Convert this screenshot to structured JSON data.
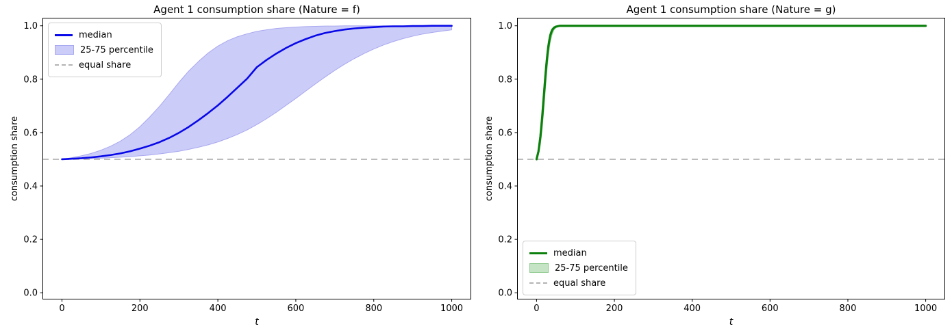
{
  "figure": {
    "background": "#ffffff"
  },
  "chart_data": [
    {
      "type": "line",
      "title": "Agent 1 consumption share (Nature = f)",
      "xlabel": "t",
      "ylabel": "consumption share",
      "xlim": [
        -50,
        1050
      ],
      "ylim": [
        -0.025,
        1.03
      ],
      "xticks": [
        0,
        200,
        400,
        600,
        800,
        1000
      ],
      "ytick_labels": [
        "0.0",
        "0.2",
        "0.4",
        "0.6",
        "0.8",
        "1.0"
      ],
      "grid": false,
      "legend_position": "upper left",
      "equal_share_y": 0.5,
      "colors": {
        "median": "#0808e8",
        "band_fill": "#ccccf8",
        "band_edge": "#a8a8f0",
        "equal_share": "#b3b3b3"
      },
      "x": [
        0,
        25,
        50,
        75,
        100,
        125,
        150,
        175,
        200,
        225,
        250,
        275,
        300,
        325,
        350,
        375,
        400,
        425,
        450,
        475,
        500,
        525,
        550,
        575,
        600,
        625,
        650,
        675,
        700,
        725,
        750,
        775,
        800,
        825,
        850,
        875,
        900,
        925,
        950,
        975,
        1000
      ],
      "series": [
        {
          "name": "median",
          "values": [
            0.5,
            0.502,
            0.504,
            0.507,
            0.511,
            0.516,
            0.522,
            0.53,
            0.54,
            0.551,
            0.564,
            0.58,
            0.599,
            0.621,
            0.646,
            0.673,
            0.702,
            0.734,
            0.768,
            0.802,
            0.845,
            0.872,
            0.896,
            0.917,
            0.935,
            0.95,
            0.963,
            0.973,
            0.98,
            0.986,
            0.99,
            0.993,
            0.995,
            0.997,
            0.998,
            0.998,
            0.999,
            0.999,
            1.0,
            1.0,
            1.0
          ]
        },
        {
          "name": "75th percentile",
          "values": [
            0.5,
            0.506,
            0.513,
            0.522,
            0.534,
            0.549,
            0.568,
            0.592,
            0.622,
            0.658,
            0.698,
            0.742,
            0.788,
            0.83,
            0.866,
            0.898,
            0.924,
            0.944,
            0.959,
            0.97,
            0.979,
            0.985,
            0.99,
            0.993,
            0.995,
            0.997,
            0.998,
            0.999,
            0.999,
            1.0,
            1.0,
            1.0,
            1.0,
            1.0,
            1.0,
            1.0,
            1.0,
            1.0,
            1.0,
            1.0,
            1.0
          ]
        },
        {
          "name": "25th percentile",
          "values": [
            0.5,
            0.501,
            0.502,
            0.503,
            0.504,
            0.506,
            0.508,
            0.51,
            0.513,
            0.516,
            0.52,
            0.525,
            0.53,
            0.537,
            0.545,
            0.554,
            0.565,
            0.578,
            0.593,
            0.61,
            0.63,
            0.652,
            0.676,
            0.702,
            0.728,
            0.755,
            0.782,
            0.808,
            0.833,
            0.856,
            0.877,
            0.896,
            0.913,
            0.928,
            0.941,
            0.952,
            0.961,
            0.969,
            0.975,
            0.98,
            0.985
          ]
        }
      ],
      "legend": [
        {
          "label": "median",
          "marker": "line"
        },
        {
          "label": "25-75 percentile",
          "marker": "patch"
        },
        {
          "label": "equal share",
          "marker": "dashed-line"
        }
      ]
    },
    {
      "type": "line",
      "title": "Agent 1 consumption share (Nature = g)",
      "xlabel": "t",
      "ylabel": "consumption share",
      "xlim": [
        -50,
        1050
      ],
      "ylim": [
        -0.025,
        1.03
      ],
      "xticks": [
        0,
        200,
        400,
        600,
        800,
        1000
      ],
      "ytick_labels": [
        "0.0",
        "0.2",
        "0.4",
        "0.6",
        "0.8",
        "1.0"
      ],
      "grid": false,
      "legend_position": "lower left",
      "equal_share_y": 0.5,
      "colors": {
        "median": "#0c800c",
        "band_fill": "#c5e3c5",
        "band_edge": "#8fca8f",
        "equal_share": "#b3b3b3"
      },
      "x": [
        0,
        5,
        10,
        15,
        20,
        25,
        30,
        35,
        40,
        45,
        50,
        60,
        80,
        100,
        150,
        200,
        300,
        400,
        500,
        600,
        700,
        800,
        900,
        1000
      ],
      "series": [
        {
          "name": "median",
          "values": [
            0.5,
            0.53,
            0.585,
            0.665,
            0.76,
            0.85,
            0.92,
            0.963,
            0.984,
            0.993,
            0.997,
            1.0,
            1.0,
            1.0,
            1.0,
            1.0,
            1.0,
            1.0,
            1.0,
            1.0,
            1.0,
            1.0,
            1.0,
            1.0
          ]
        },
        {
          "name": "75th percentile",
          "values": [
            0.5,
            0.545,
            0.615,
            0.705,
            0.8,
            0.882,
            0.94,
            0.975,
            0.99,
            0.996,
            0.999,
            1.0,
            1.0,
            1.0,
            1.0,
            1.0,
            1.0,
            1.0,
            1.0,
            1.0,
            1.0,
            1.0,
            1.0,
            1.0
          ]
        },
        {
          "name": "25th percentile",
          "values": [
            0.5,
            0.518,
            0.556,
            0.622,
            0.71,
            0.805,
            0.885,
            0.938,
            0.968,
            0.985,
            0.993,
            0.999,
            1.0,
            1.0,
            1.0,
            1.0,
            1.0,
            1.0,
            1.0,
            1.0,
            1.0,
            1.0,
            1.0,
            1.0
          ]
        }
      ],
      "legend": [
        {
          "label": "median",
          "marker": "line"
        },
        {
          "label": "25-75 percentile",
          "marker": "patch"
        },
        {
          "label": "equal share",
          "marker": "dashed-line"
        }
      ]
    }
  ]
}
